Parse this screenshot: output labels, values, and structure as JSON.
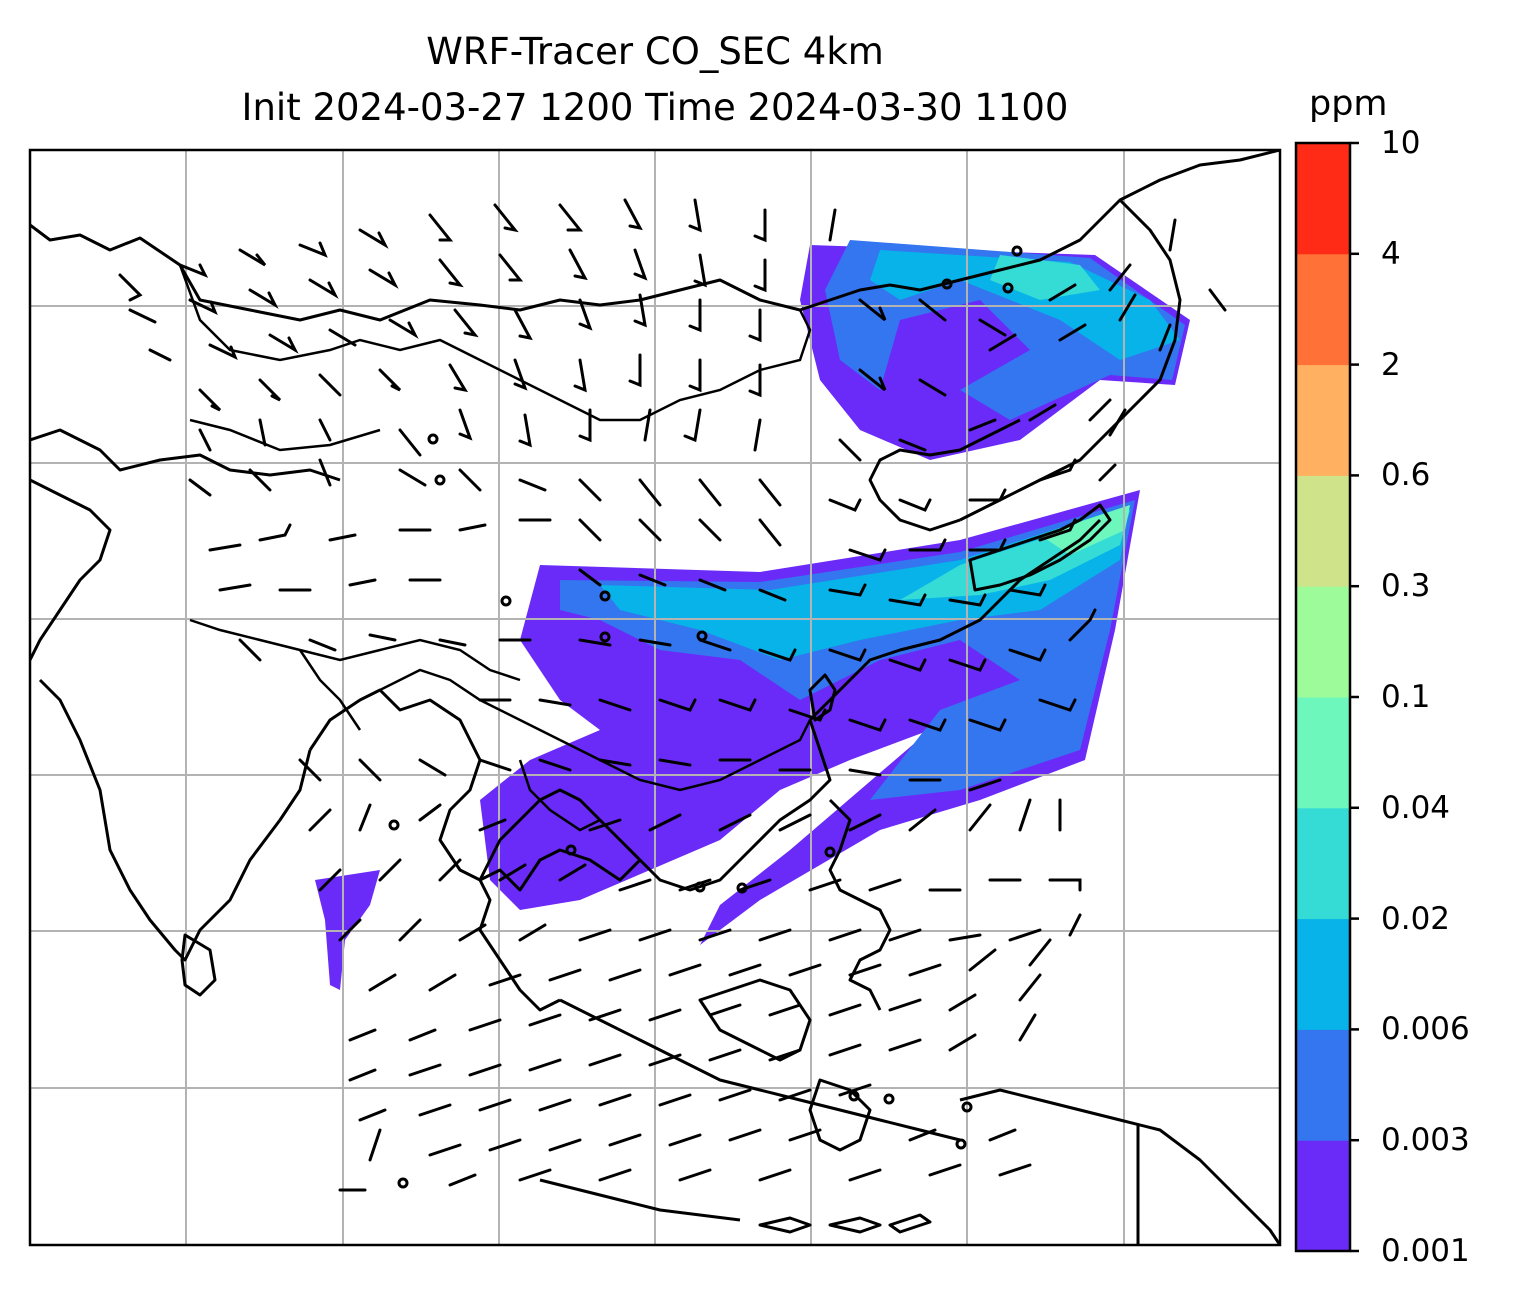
{
  "title": {
    "line1": "WRF-Tracer CO_SEC 4km",
    "line2": "Init 2024-03-27 1200 Time 2024-03-30 1100"
  },
  "colorbar": {
    "unit": "ppm",
    "ticks": [
      "0.001",
      "0.003",
      "0.006",
      "0.02",
      "0.04",
      "0.1",
      "0.3",
      "0.6",
      "2",
      "4",
      "10"
    ],
    "colors": [
      "#6a2bf8",
      "#3475f0",
      "#07b3e8",
      "#35dcd6",
      "#6df7bd",
      "#9dfb9a",
      "#cfe48a",
      "#ffb061",
      "#ff7136",
      "#ff2b16"
    ]
  },
  "map": {
    "field": "CO_SEC tracer concentration",
    "overlays": [
      "coastlines",
      "country-borders",
      "gridlines",
      "wind-barbs"
    ],
    "gridline_color": "#b3b3b3"
  }
}
